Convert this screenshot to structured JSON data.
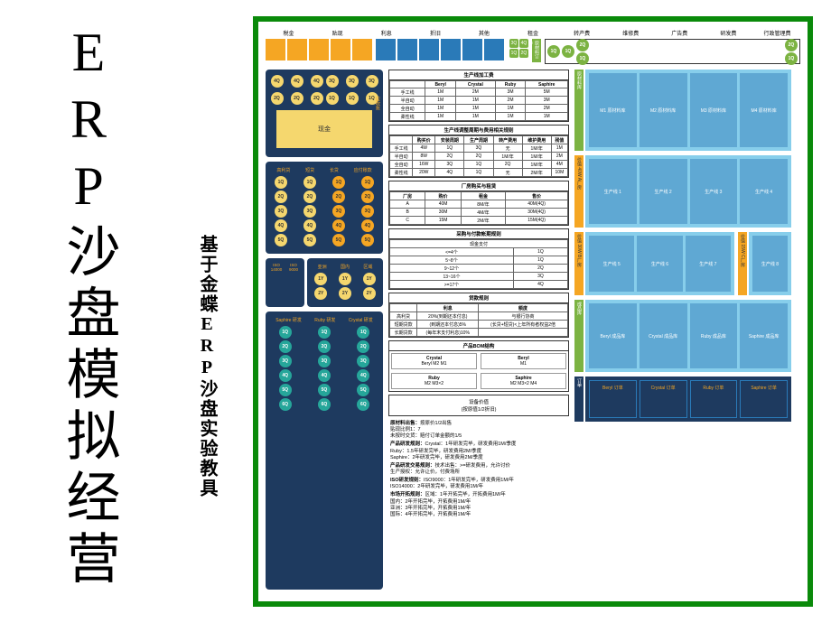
{
  "title": "ERP沙盘模拟经营",
  "subtitle": "基于金蝶ERP沙盘实验教具",
  "colors": {
    "frame_green": "#0a8a0a",
    "dark_navy": "#1e3a5f",
    "orange": "#f5a623",
    "yellow": "#f5d76e",
    "green": "#7cb342",
    "light_blue": "#87ceeb",
    "mid_blue": "#5fa8d3",
    "deep_blue": "#2a7ab8",
    "teal": "#26a69a"
  },
  "top_header_labels": [
    "税金",
    "贴现",
    "利息",
    "折旧",
    "其他",
    "租金",
    "转产费",
    "维修费",
    "广告费",
    "研发费",
    "行政管理费"
  ],
  "top_right_title": "原材料订单",
  "quarters": [
    "1Q",
    "2Q",
    "3Q",
    "4Q"
  ],
  "cash_label": "现金",
  "receivable_label": "应收账",
  "panel2_labels": [
    "高利贷",
    "短贷",
    "长贷",
    "应付账款"
  ],
  "iso": [
    "ISO 14000",
    "ISO 9000"
  ],
  "market_labels": [
    "亚洲",
    "国内",
    "区域"
  ],
  "market_years": [
    "1Y",
    "2Y"
  ],
  "rd_labels": [
    "Saphire 研发",
    "Ruby 研发",
    "Crystal 研发"
  ],
  "rd_rows": [
    "1Q",
    "2Q",
    "3Q",
    "4Q",
    "5Q",
    "6Q"
  ],
  "table1": {
    "title": "生产线加工费",
    "cols": [
      "",
      "Beryl",
      "Crystal",
      "Ruby",
      "Saphire"
    ],
    "rows": [
      [
        "手工线",
        "1M",
        "2M",
        "3M",
        "5M"
      ],
      [
        "半自动",
        "1M",
        "1M",
        "2M",
        "3M"
      ],
      [
        "全自动",
        "1M",
        "1M",
        "1M",
        "2M"
      ],
      [
        "柔性线",
        "1M",
        "1M",
        "1M",
        "1M"
      ]
    ]
  },
  "table2": {
    "title": "生产线调整周期与费用相关规则",
    "cols": [
      "",
      "购买价",
      "安装周期",
      "生产周期",
      "转产费用",
      "维护费用",
      "残值"
    ],
    "rows": [
      [
        "手工线",
        "4W",
        "1Q",
        "3Q",
        "无",
        "1M/年",
        "1M"
      ],
      [
        "半自动",
        "8W",
        "2Q",
        "2Q",
        "1M/年",
        "1M/年",
        "2M"
      ],
      [
        "全自动",
        "16W",
        "3Q",
        "1Q",
        "2Q",
        "1M/年",
        "4M"
      ],
      [
        "柔性线",
        "20W",
        "4Q",
        "1Q",
        "无",
        "2M/年",
        "10M"
      ]
    ]
  },
  "table3": {
    "title": "厂房购买与租赁",
    "cols": [
      "厂房",
      "购价",
      "租金",
      "售价"
    ],
    "rows": [
      [
        "A",
        "40M",
        "8M/年",
        "40M(4Q)"
      ],
      [
        "B",
        "30M",
        "4M/年",
        "30M(4Q)"
      ],
      [
        "C",
        "15M",
        "2M/年",
        "15M(4Q)"
      ]
    ]
  },
  "table4": {
    "title": "采购与付款帐期规则",
    "sub": "现金支付",
    "rows": [
      [
        "<=4个",
        "1Q"
      ],
      [
        "5~8个",
        "1Q"
      ],
      [
        "9~12个",
        "2Q"
      ],
      [
        "13~16个",
        "3Q"
      ],
      [
        ">=17个",
        "4Q"
      ]
    ]
  },
  "table5": {
    "title": "贷款规则",
    "cols": [
      "",
      "利息",
      "额度"
    ],
    "rows": [
      [
        "高利贷",
        "20%(到期还本付息)",
        "与银行协商"
      ],
      [
        "短期贷款",
        "(到期还本付息)5%",
        "(长贷+短贷)<上年所有者权益2倍"
      ],
      [
        "长期贷款",
        "(每年末支付利息)10%",
        ""
      ]
    ]
  },
  "bom": {
    "title": "产品BOM结构",
    "sub": "(按原值1/2折旧)",
    "products": {
      "Crystal": [
        "Beryl",
        "M2",
        "M1"
      ],
      "Beryl": [
        "M1"
      ],
      "Ruby": [
        "M2",
        "M3×2"
      ],
      "Saphire": [
        "M2",
        "M3×2",
        "M4"
      ]
    }
  },
  "equipment_label": "设备价值",
  "rules": {
    "r1": {
      "h": "原材料出售：",
      "t": "按原价1/2出售\n贴现比例1：7\n未按时交货：赔付订单金额的1/5"
    },
    "r2": {
      "h": "产品研发规则：",
      "t": "Crystal：1年研发完毕，研发费用1M/季度\nRuby：1.5年研发完毕，研发费用2M/季度\nSaphire：2年研发完毕，研发费用2M/季度"
    },
    "r3": {
      "h": "产品研发交易规则：",
      "t": "技术出售：>=研发费用，允许讨价\n生产授权：允许让价，付费场所"
    },
    "r4": {
      "h": "ISO研发规则：",
      "t": "ISO9000：1年研发完毕，研发费用1M/年\nISO14000：2年研发完毕，研发费用1M/年"
    },
    "r5": {
      "h": "市场开拓规则：",
      "t": "区域：1年开拓完毕，开拓费用1M/年\n国内：2年开拓完毕，开拓费用1M/年\n亚洲：3年开拓完毕，开拓费用1M/年\n国际：4年开拓完毕，开拓费用1M/年"
    }
  },
  "warehouses": {
    "raw": [
      "M1 原材料库",
      "M2 原材料库",
      "M3 原材料库",
      "M4 原材料库"
    ],
    "tagA": "原材料库",
    "tagPriceA": "价值 40W A厂房",
    "tagPriceB": "价值 30W B厂房",
    "tagPriceC": "价值 15W C厂房",
    "linesA": [
      "生产线 1",
      "生产线 2",
      "生产线 3",
      "生产线 4"
    ],
    "linesB": [
      "生产线 5",
      "生产线 6",
      "生产线 7"
    ],
    "linesC": [
      "生产线 8"
    ],
    "finished": [
      "Beryl 成品库",
      "Crystal 成品库",
      "Ruby 成品库",
      "Saphire 成品库"
    ],
    "finished_tag": "成品库",
    "orders": [
      "Beryl 订单",
      "Crystal 订单",
      "Ruby 订单",
      "Saphire 订单"
    ],
    "orders_tag": "订单"
  }
}
